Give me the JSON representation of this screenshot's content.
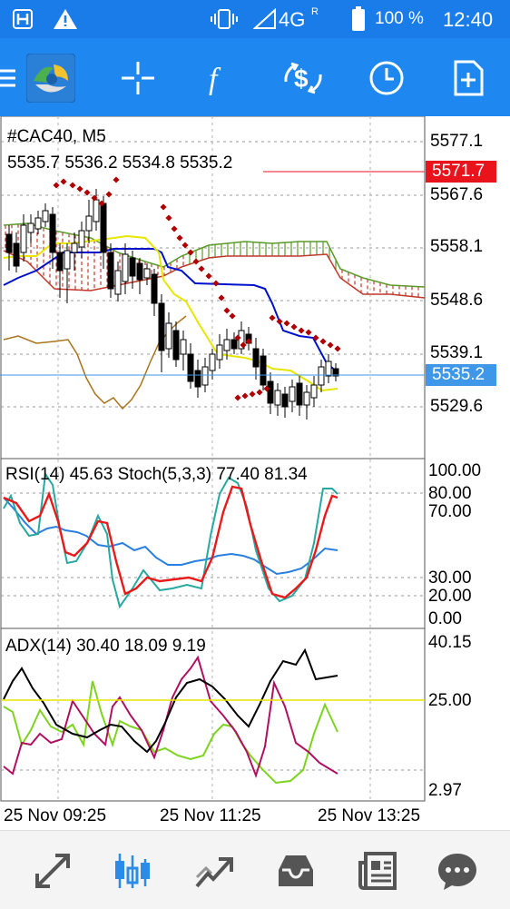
{
  "status_bar": {
    "network": "4G",
    "network_sup": "R",
    "battery": "100 %",
    "time": "12:40"
  },
  "toolbar": {
    "items": [
      {
        "name": "menu-icon"
      },
      {
        "name": "metatrader-logo"
      },
      {
        "name": "crosshair-icon"
      },
      {
        "name": "indicators-icon"
      },
      {
        "name": "dollar-sync-icon"
      },
      {
        "name": "timeframe-clock-icon"
      },
      {
        "name": "add-template-icon"
      }
    ]
  },
  "main_chart": {
    "symbol_line": "#CAC40, M5",
    "ohlc_line": "5535.7 5536.2 5534.8 5535.2",
    "price_labels": [
      "5577.1",
      "5567.6",
      "5558.1",
      "5548.6",
      "5539.1",
      "5529.6"
    ],
    "alert_price": "5571.7",
    "current_price": "5535.2",
    "colors": {
      "alert": "#e8131b",
      "current": "#3e97e8",
      "ichimoku_kijun": "#0011cc",
      "ichimoku_tenkan": "#e6e600",
      "sar": "#b00000"
    }
  },
  "rsi_panel": {
    "title": "RSI(14) 45.63 Stoch(5,3,3) 77.40 81.34",
    "levels": [
      "100.00",
      "80.00",
      "70.00",
      "30.00",
      "20.00",
      "0.00"
    ]
  },
  "adx_panel": {
    "title": "ADX(14) 30.40 18.09 9.19",
    "levels": [
      "40.15",
      "25.00",
      "2.97"
    ]
  },
  "time_axis": {
    "labels": [
      "25 Nov 09:25",
      "25 Nov 11:25",
      "25 Nov 13:25"
    ]
  },
  "bottom_nav": {
    "items": [
      {
        "name": "quotes-icon"
      },
      {
        "name": "chart-icon",
        "active": true
      },
      {
        "name": "trade-icon"
      },
      {
        "name": "history-icon"
      },
      {
        "name": "news-icon"
      },
      {
        "name": "chat-icon"
      }
    ]
  }
}
